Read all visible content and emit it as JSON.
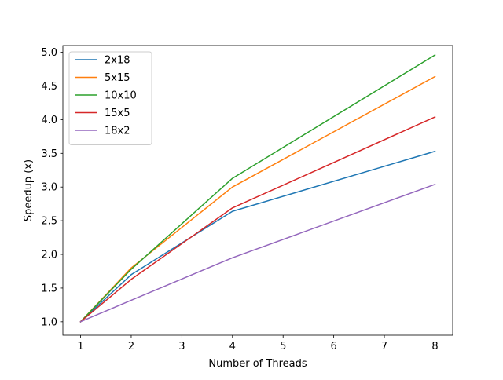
{
  "chart_data": {
    "type": "line",
    "title": "",
    "xlabel": "Number of Threads",
    "ylabel": "Speedup (x)",
    "x": [
      1,
      2,
      4,
      8
    ],
    "xlim": [
      0.65,
      8.35
    ],
    "ylim": [
      0.8,
      5.1
    ],
    "xticks": [
      1,
      2,
      3,
      4,
      5,
      6,
      7,
      8
    ],
    "yticks": [
      1.0,
      1.5,
      2.0,
      2.5,
      3.0,
      3.5,
      4.0,
      4.5,
      5.0
    ],
    "xtick_labels": [
      "1",
      "2",
      "3",
      "4",
      "5",
      "6",
      "7",
      "8"
    ],
    "ytick_labels": [
      "1.0",
      "1.5",
      "2.0",
      "2.5",
      "3.0",
      "3.5",
      "4.0",
      "4.5",
      "5.0"
    ],
    "grid": false,
    "legend_position": "top-left",
    "series": [
      {
        "name": "2x18",
        "color": "#1f77b4",
        "values": [
          1.0,
          1.7,
          2.64,
          3.53
        ]
      },
      {
        "name": "5x15",
        "color": "#ff7f0e",
        "values": [
          1.0,
          1.8,
          3.0,
          4.64
        ]
      },
      {
        "name": "10x10",
        "color": "#2ca02c",
        "values": [
          1.0,
          1.78,
          3.13,
          4.96
        ]
      },
      {
        "name": "15x5",
        "color": "#d62728",
        "values": [
          1.0,
          1.63,
          2.69,
          4.04
        ]
      },
      {
        "name": "18x2",
        "color": "#9467bd",
        "values": [
          1.0,
          1.32,
          1.95,
          3.04
        ]
      }
    ]
  }
}
